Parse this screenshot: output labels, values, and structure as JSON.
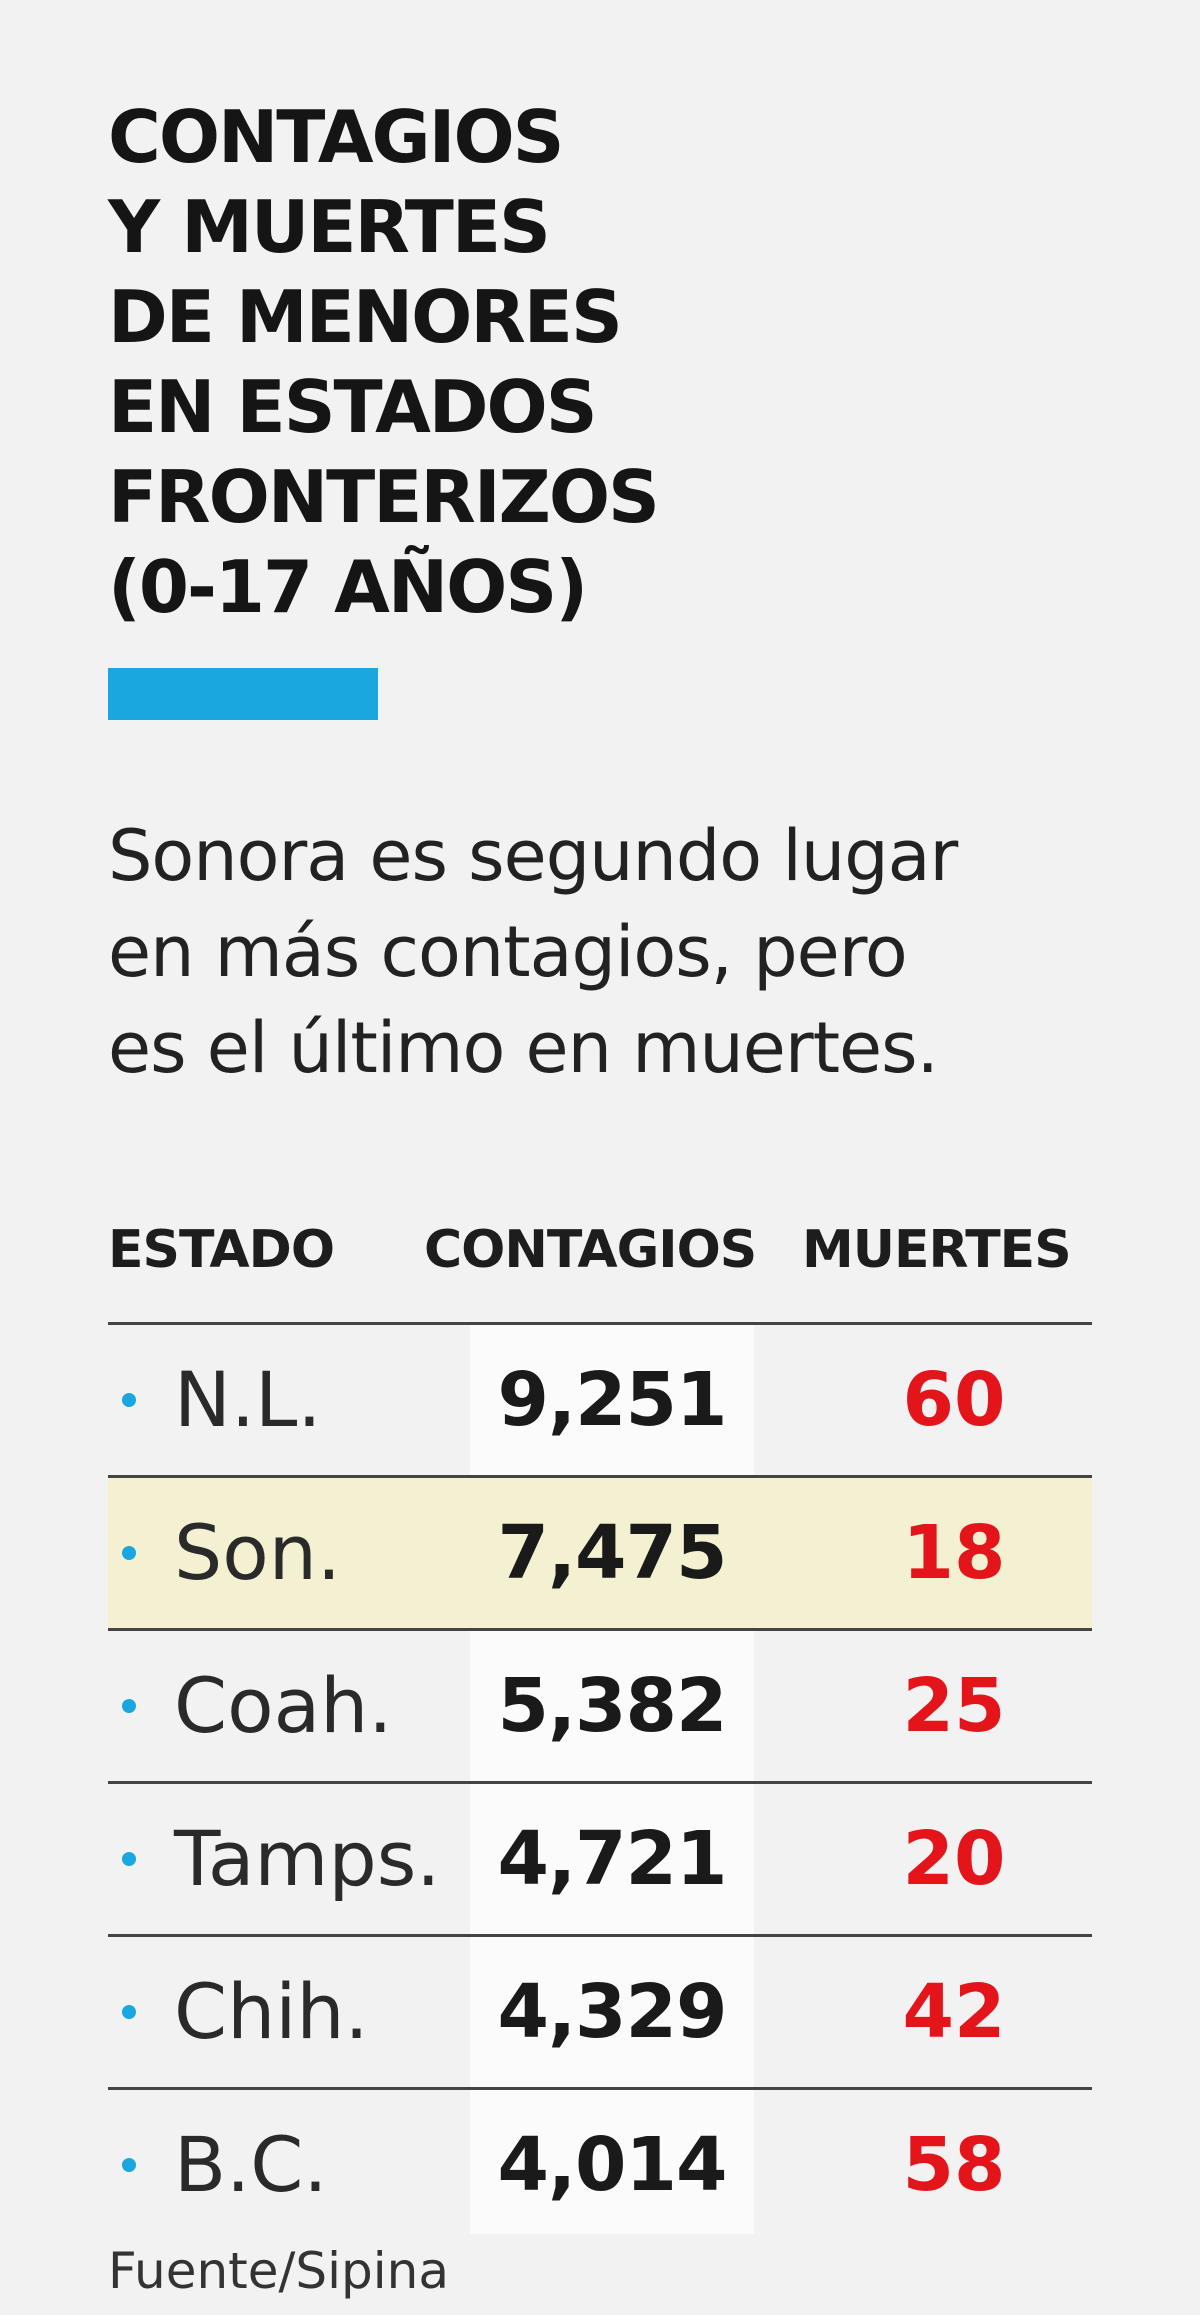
{
  "title_lines": [
    "CONTAGIOS",
    "Y MUERTES",
    "DE MENORES",
    "EN ESTADOS",
    "FRONTERIZOS",
    "(0-17 AÑOS)"
  ],
  "subtitle_lines": [
    "Sonora es segundo lugar",
    "en más contagios, pero",
    "es el último en muertes."
  ],
  "colors": {
    "accent": "#1aa7e0",
    "deaths": "#e3151b",
    "highlight_row": "#f3f1d2",
    "background": "#f2f2f2"
  },
  "chart_data": {
    "type": "table",
    "columns": [
      "ESTADO",
      "CONTAGIOS",
      "MUERTES"
    ],
    "rows": [
      {
        "estado": "N.L.",
        "contagios": "9,251",
        "muertes": "60"
      },
      {
        "estado": "Son.",
        "contagios": "7,475",
        "muertes": "18",
        "highlighted": true
      },
      {
        "estado": "Coah.",
        "contagios": "5,382",
        "muertes": "25"
      },
      {
        "estado": "Tamps.",
        "contagios": "4,721",
        "muertes": "20"
      },
      {
        "estado": "Chih.",
        "contagios": "4,329",
        "muertes": "42"
      },
      {
        "estado": "B.C.",
        "contagios": "4,014",
        "muertes": "58"
      }
    ]
  },
  "source": "Fuente/Sipina"
}
